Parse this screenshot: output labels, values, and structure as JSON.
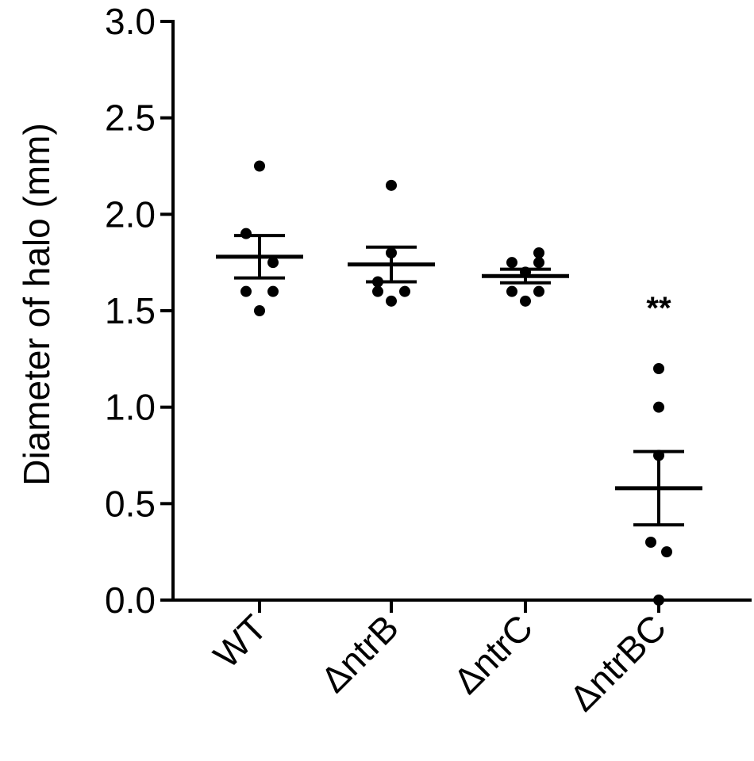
{
  "chart_data": {
    "type": "scatter",
    "title": "",
    "xlabel": "",
    "ylabel": "Diameter of halo  (mm)",
    "ylim": [
      0,
      3.0
    ],
    "yticks": [
      "0.0",
      "0.5",
      "1.0",
      "1.5",
      "2.0",
      "2.5",
      "3.0"
    ],
    "grid": false,
    "legend": "none",
    "categories": [
      "WT",
      "ΔntrB",
      "ΔntrC",
      "ΔntrBC"
    ],
    "groups": [
      {
        "category": "WT",
        "points": [
          2.25,
          1.9,
          1.75,
          1.6,
          1.6,
          1.5
        ],
        "mean": 1.78,
        "sem": 0.11
      },
      {
        "category": "ΔntrB",
        "points": [
          2.15,
          1.8,
          1.65,
          1.6,
          1.6,
          1.55
        ],
        "mean": 1.74,
        "sem": 0.09
      },
      {
        "category": "ΔntrC",
        "points": [
          1.8,
          1.75,
          1.75,
          1.7,
          1.6,
          1.6,
          1.55
        ],
        "mean": 1.68,
        "sem": 0.035
      },
      {
        "category": "ΔntrBC",
        "points": [
          1.2,
          1.0,
          0.75,
          0.3,
          0.25,
          0.0
        ],
        "mean": 0.58,
        "sem": 0.19
      }
    ],
    "annotations": [
      {
        "category": "ΔntrBC",
        "text": "**",
        "y": 1.55
      }
    ],
    "colors": {
      "points": "#000000",
      "bars": "#000000",
      "axes": "#000000"
    }
  }
}
